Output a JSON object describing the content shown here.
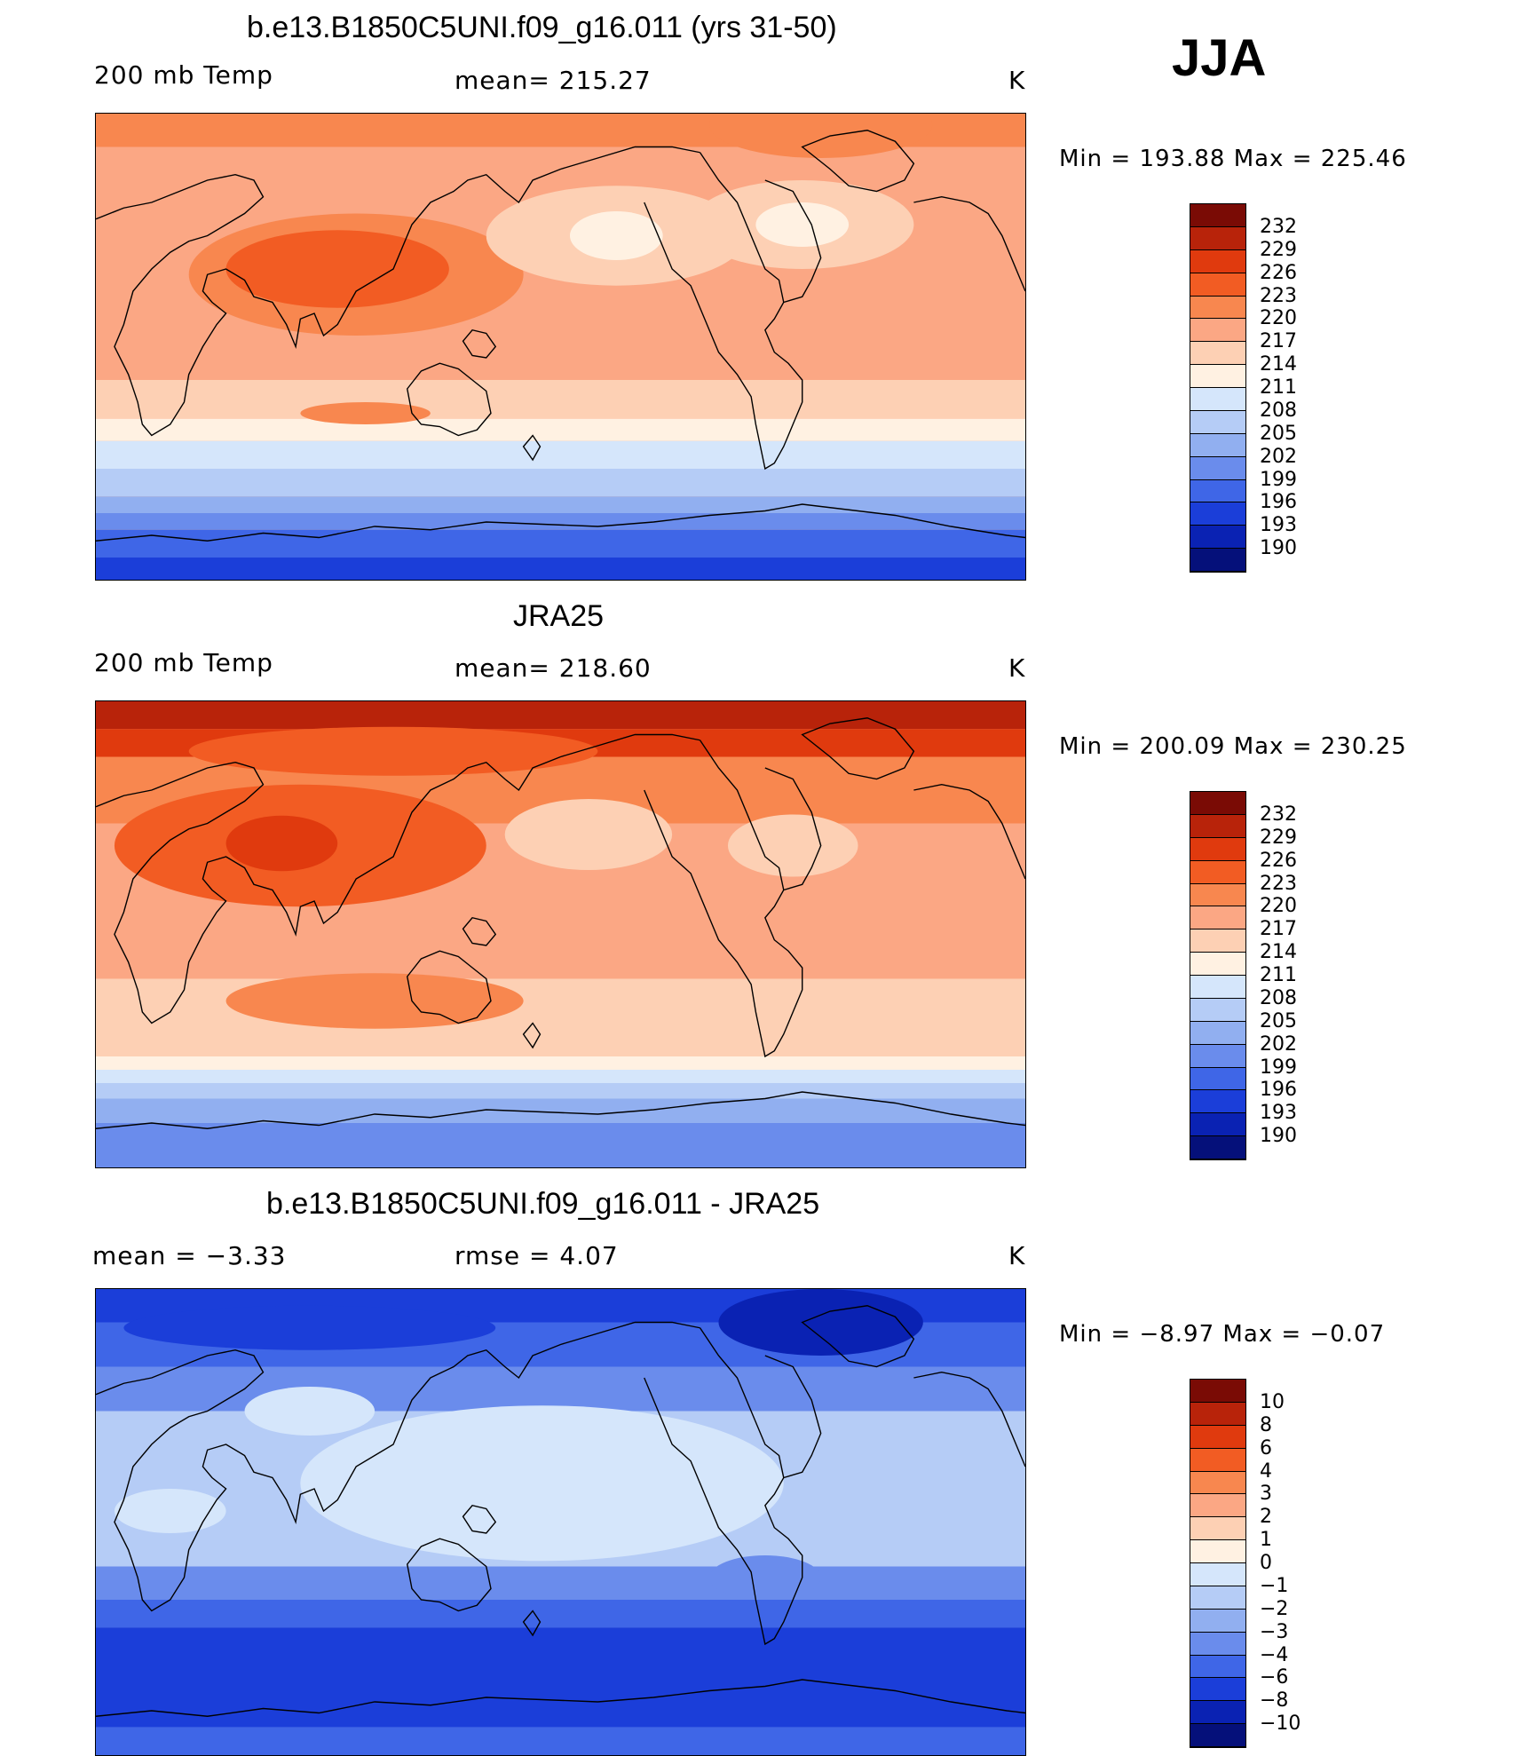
{
  "season": "JJA",
  "palette": {
    "warm": [
      "#fff1e2",
      "#fdd0b4",
      "#fba784",
      "#f8874f",
      "#f25c23",
      "#e03a0e",
      "#b8230a",
      "#7a0b05"
    ],
    "cool": [
      "#d5e6fb",
      "#b5ccf6",
      "#91aff0",
      "#6a8cec",
      "#3f66e7",
      "#1b3ed9",
      "#0a22b3",
      "#05107a"
    ]
  },
  "panels": [
    {
      "title": "b.e13.B1850C5UNI.f09_g16.011 (yrs 31-50)",
      "left": "200 mb Temp",
      "center": "mean= 215.27",
      "right": "K",
      "minmax": "Min  =  193.88  Max  =  225.46",
      "legend_ticks": [
        "232",
        "229",
        "226",
        "223",
        "220",
        "217",
        "214",
        "211",
        "208",
        "205",
        "202",
        "199",
        "196",
        "193",
        "190"
      ],
      "legend_colors": [
        "#7a0b05",
        "#b8230a",
        "#e03a0e",
        "#f25c23",
        "#f8874f",
        "#fba784",
        "#fdd0b4",
        "#fff1e2",
        "#d5e6fb",
        "#b5ccf6",
        "#91aff0",
        "#6a8cec",
        "#3f66e7",
        "#1b3ed9",
        "#0a22b3",
        "#05107a"
      ],
      "map": {
        "base": "#fba784",
        "bands": [
          {
            "y": 0,
            "h": 30,
            "c": "#f8874f"
          },
          {
            "y": 30,
            "h": 60,
            "c": "#fba784"
          },
          {
            "y": 90,
            "h": 150,
            "c": "#fba784"
          },
          {
            "y": 240,
            "h": 35,
            "c": "#fdd0b4"
          },
          {
            "y": 275,
            "h": 20,
            "c": "#fff1e2"
          },
          {
            "y": 295,
            "h": 25,
            "c": "#d5e6fb"
          },
          {
            "y": 320,
            "h": 25,
            "c": "#b5ccf6"
          },
          {
            "y": 345,
            "h": 15,
            "c": "#91aff0"
          },
          {
            "y": 360,
            "h": 15,
            "c": "#6a8cec"
          },
          {
            "y": 375,
            "h": 25,
            "c": "#3f66e7"
          },
          {
            "y": 400,
            "h": 20,
            "c": "#1b3ed9"
          }
        ],
        "blobs": [
          {
            "cx": 280,
            "cy": 145,
            "rx": 180,
            "ry": 55,
            "c": "#f8874f"
          },
          {
            "cx": 260,
            "cy": 140,
            "rx": 120,
            "ry": 35,
            "c": "#f25c23"
          },
          {
            "cx": 560,
            "cy": 110,
            "rx": 140,
            "ry": 45,
            "c": "#fdd0b4"
          },
          {
            "cx": 560,
            "cy": 110,
            "rx": 50,
            "ry": 22,
            "c": "#fff1e2"
          },
          {
            "cx": 760,
            "cy": 100,
            "rx": 120,
            "ry": 40,
            "c": "#fdd0b4"
          },
          {
            "cx": 760,
            "cy": 100,
            "rx": 50,
            "ry": 20,
            "c": "#fff1e2"
          },
          {
            "cx": 290,
            "cy": 270,
            "rx": 70,
            "ry": 10,
            "c": "#f8874f"
          },
          {
            "cx": 780,
            "cy": 10,
            "rx": 120,
            "ry": 30,
            "c": "#f8874f"
          }
        ]
      }
    },
    {
      "title": "JRA25",
      "left": "200 mb Temp",
      "center": "mean= 218.60",
      "right": "K",
      "minmax": "Min  =  200.09  Max  =  230.25",
      "legend_ticks": [
        "232",
        "229",
        "226",
        "223",
        "220",
        "217",
        "214",
        "211",
        "208",
        "205",
        "202",
        "199",
        "196",
        "193",
        "190"
      ],
      "legend_colors": [
        "#7a0b05",
        "#b8230a",
        "#e03a0e",
        "#f25c23",
        "#f8874f",
        "#fba784",
        "#fdd0b4",
        "#fff1e2",
        "#d5e6fb",
        "#b5ccf6",
        "#91aff0",
        "#6a8cec",
        "#3f66e7",
        "#1b3ed9",
        "#0a22b3",
        "#05107a"
      ],
      "map": {
        "base": "#fba784",
        "bands": [
          {
            "y": 0,
            "h": 25,
            "c": "#b8230a"
          },
          {
            "y": 25,
            "h": 25,
            "c": "#e03a0e"
          },
          {
            "y": 50,
            "h": 60,
            "c": "#f8874f"
          },
          {
            "y": 110,
            "h": 140,
            "c": "#fba784"
          },
          {
            "y": 250,
            "h": 70,
            "c": "#fdd0b4"
          },
          {
            "y": 320,
            "h": 12,
            "c": "#fff1e2"
          },
          {
            "y": 332,
            "h": 12,
            "c": "#d5e6fb"
          },
          {
            "y": 344,
            "h": 14,
            "c": "#b5ccf6"
          },
          {
            "y": 358,
            "h": 22,
            "c": "#91aff0"
          },
          {
            "y": 380,
            "h": 40,
            "c": "#6a8cec"
          }
        ],
        "blobs": [
          {
            "cx": 220,
            "cy": 130,
            "rx": 200,
            "ry": 55,
            "c": "#f25c23"
          },
          {
            "cx": 200,
            "cy": 128,
            "rx": 60,
            "ry": 25,
            "c": "#e03a0e"
          },
          {
            "cx": 300,
            "cy": 270,
            "rx": 160,
            "ry": 25,
            "c": "#f8874f"
          },
          {
            "cx": 530,
            "cy": 120,
            "rx": 90,
            "ry": 32,
            "c": "#fdd0b4"
          },
          {
            "cx": 750,
            "cy": 130,
            "rx": 70,
            "ry": 28,
            "c": "#fdd0b4"
          },
          {
            "cx": 650,
            "cy": 290,
            "rx": 90,
            "ry": 18,
            "c": "#fdd0b4"
          },
          {
            "cx": 320,
            "cy": 45,
            "rx": 220,
            "ry": 22,
            "c": "#f25c23"
          }
        ]
      }
    },
    {
      "title": "b.e13.B1850C5UNI.f09_g16.011 - JRA25",
      "left": "mean  =     −3.33",
      "center": "rmse  =     4.07",
      "right": "K",
      "minmax": "Min  =    −8.97  Max  =    −0.07",
      "legend_ticks": [
        "10",
        "8",
        "6",
        "4",
        "3",
        "2",
        "1",
        "0",
        "−1",
        "−2",
        "−3",
        "−4",
        "−6",
        "−8",
        "−10"
      ],
      "legend_colors": [
        "#7a0b05",
        "#b8230a",
        "#e03a0e",
        "#f25c23",
        "#f8874f",
        "#fba784",
        "#fdd0b4",
        "#fff1e2",
        "#d5e6fb",
        "#b5ccf6",
        "#91aff0",
        "#6a8cec",
        "#3f66e7",
        "#1b3ed9",
        "#0a22b3",
        "#05107a"
      ],
      "map": {
        "base": "#91aff0",
        "bands": [
          {
            "y": 0,
            "h": 30,
            "c": "#1b3ed9"
          },
          {
            "y": 30,
            "h": 40,
            "c": "#3f66e7"
          },
          {
            "y": 70,
            "h": 40,
            "c": "#6a8cec"
          },
          {
            "y": 110,
            "h": 140,
            "c": "#b5ccf6"
          },
          {
            "y": 250,
            "h": 30,
            "c": "#6a8cec"
          },
          {
            "y": 280,
            "h": 25,
            "c": "#3f66e7"
          },
          {
            "y": 305,
            "h": 90,
            "c": "#1b3ed9"
          },
          {
            "y": 395,
            "h": 25,
            "c": "#3f66e7"
          }
        ],
        "blobs": [
          {
            "cx": 480,
            "cy": 175,
            "rx": 260,
            "ry": 70,
            "c": "#d5e6fb"
          },
          {
            "cx": 230,
            "cy": 110,
            "rx": 70,
            "ry": 22,
            "c": "#d5e6fb"
          },
          {
            "cx": 80,
            "cy": 200,
            "rx": 60,
            "ry": 20,
            "c": "#d5e6fb"
          },
          {
            "cx": 720,
            "cy": 260,
            "rx": 60,
            "ry": 20,
            "c": "#6a8cec"
          },
          {
            "cx": 780,
            "cy": 30,
            "rx": 110,
            "ry": 30,
            "c": "#0a22b3"
          },
          {
            "cx": 230,
            "cy": 35,
            "rx": 200,
            "ry": 20,
            "c": "#1b3ed9"
          }
        ]
      }
    }
  ]
}
